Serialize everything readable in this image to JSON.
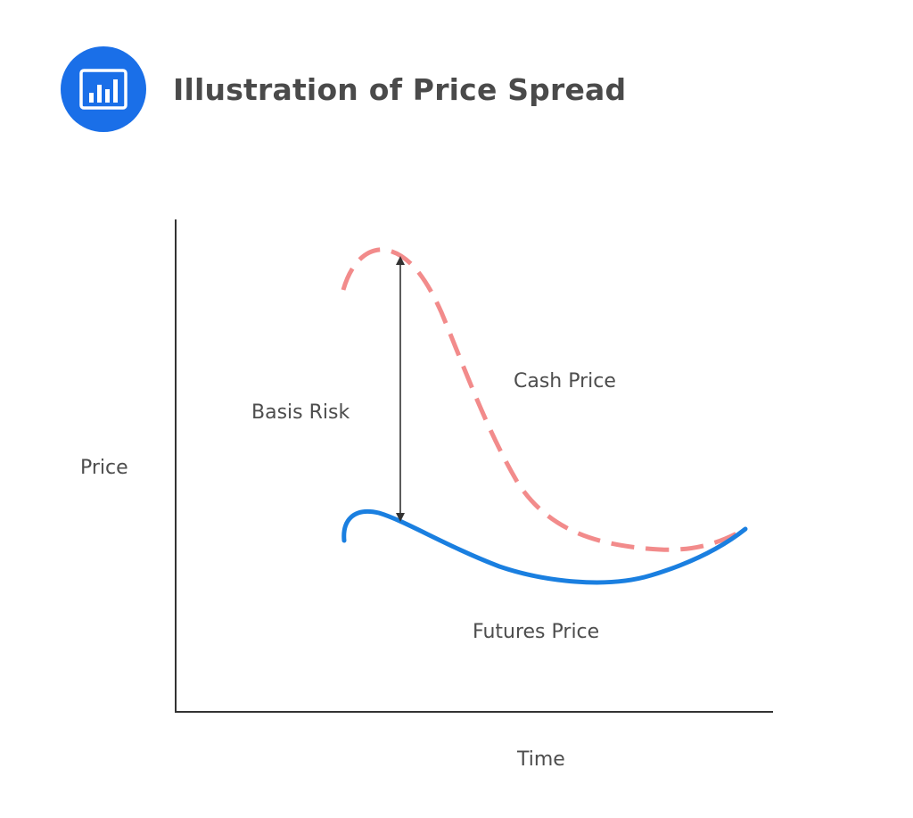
{
  "header": {
    "title": "Illustration of Price Spread",
    "icon": "bar-chart-icon"
  },
  "diagram": {
    "y_axis_label": "Price",
    "x_axis_label": "Time",
    "basis_label": "Basis Risk",
    "cash_label": "Cash Price",
    "futures_label": "Futures Price"
  },
  "colors": {
    "icon_background": "#1a6fe8",
    "cash_curve": "#f28b8b",
    "futures_curve": "#1a7fe0",
    "axis": "#333333",
    "text": "#4d4d4d"
  }
}
